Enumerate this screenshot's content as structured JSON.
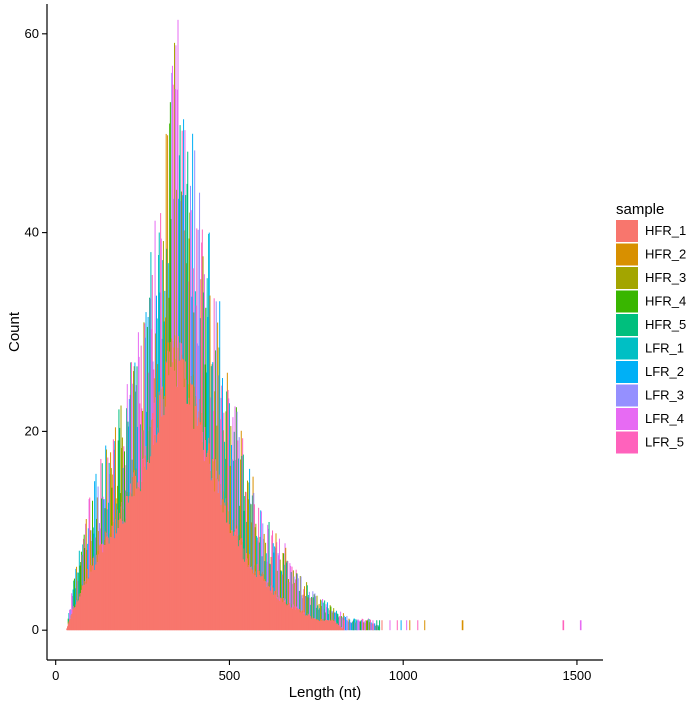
{
  "chart_data": {
    "type": "bar",
    "title": "",
    "xlabel": "Length (nt)",
    "ylabel": "Count",
    "xlim": [
      -25,
      1575
    ],
    "ylim": [
      -3,
      63
    ],
    "x_ticks": [
      0,
      500,
      1000,
      1500
    ],
    "y_ticks": [
      0,
      20,
      40,
      60
    ],
    "grid": false,
    "legend_title": "sample",
    "legend_position": "right",
    "series": [
      {
        "name": "HFR_1",
        "color": "#F8766D"
      },
      {
        "name": "HFR_2",
        "color": "#D89000"
      },
      {
        "name": "HFR_3",
        "color": "#A3A500"
      },
      {
        "name": "HFR_4",
        "color": "#39B600"
      },
      {
        "name": "HFR_5",
        "color": "#00BF7D"
      },
      {
        "name": "LFR_1",
        "color": "#00BFC4"
      },
      {
        "name": "LFR_2",
        "color": "#00B0F6"
      },
      {
        "name": "LFR_3",
        "color": "#9590FF"
      },
      {
        "name": "LFR_4",
        "color": "#E76BF3"
      },
      {
        "name": "LFR_5",
        "color": "#FF62BC"
      }
    ],
    "base_series_envelope": {
      "series": "HFR_1",
      "x": [
        30,
        50,
        100,
        150,
        200,
        250,
        300,
        330,
        350,
        370,
        400,
        450,
        500,
        550,
        600,
        650,
        700,
        750,
        800,
        830
      ],
      "count": [
        0,
        2,
        6,
        9,
        12,
        16,
        22,
        26,
        27,
        26,
        22,
        16,
        11,
        7,
        5,
        3,
        2,
        1,
        1,
        0
      ]
    },
    "total_envelope": {
      "x": [
        30,
        50,
        100,
        150,
        200,
        250,
        300,
        330,
        350,
        370,
        400,
        450,
        500,
        550,
        600,
        650,
        700,
        750,
        800,
        850,
        900,
        950
      ],
      "count": [
        0,
        4,
        12,
        16,
        20,
        28,
        38,
        48,
        55,
        50,
        42,
        32,
        22,
        15,
        10,
        8,
        5,
        3,
        2,
        1,
        1,
        0
      ]
    },
    "outliers": [
      {
        "x": 1170,
        "count": 1,
        "series": "HFR_2"
      },
      {
        "x": 1460,
        "count": 1,
        "series": "LFR_5"
      },
      {
        "x": 1510,
        "count": 1,
        "series": "LFR_4"
      }
    ]
  }
}
